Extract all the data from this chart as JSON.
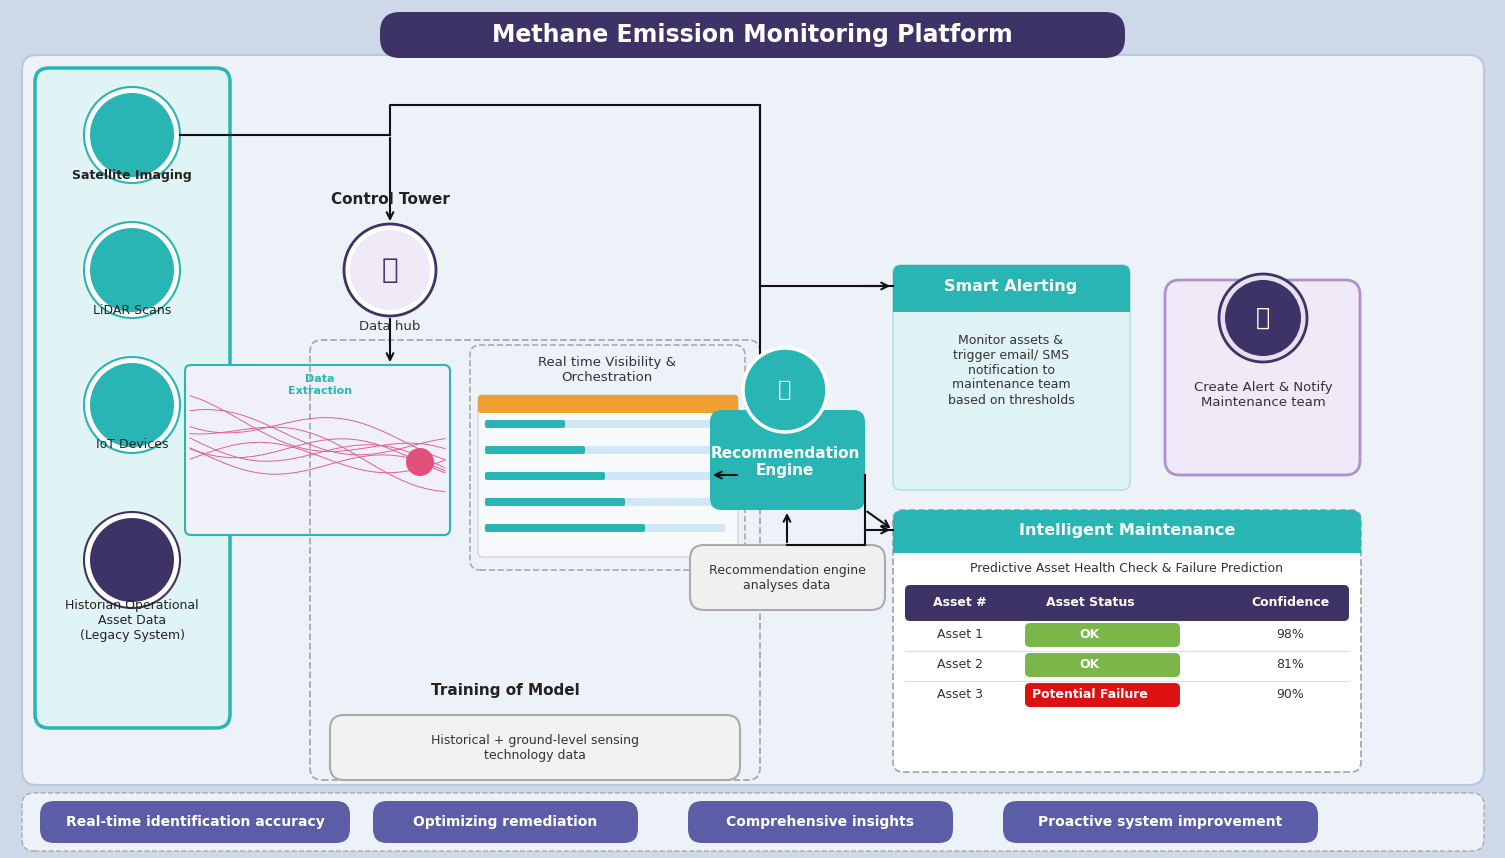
{
  "title": "Methane Emission Monitoring Platform",
  "bg_color": "#cdd8e8",
  "title_bg": "#3d3366",
  "title_text_color": "#ffffff",
  "main_panel_bg": "#edf1f8",
  "main_panel_border": "#b8c8dd",
  "left_panel_bg": "#e0f4f6",
  "left_panel_border": "#2ab5b5",
  "sources": [
    "Satellite Imaging",
    "LiDAR Scans",
    "IoT Devices",
    "Historian Operational\nAsset Data\n(Legacy System)"
  ],
  "source_icon_colors": [
    "#2ab5b5",
    "#2ab5b5",
    "#2ab5b5",
    "#3d3366"
  ],
  "control_tower_label": "Control Tower",
  "data_hub_label": "Data hub",
  "visibility_label": "Real time Visibility &\nOrchestration",
  "rec_engine_label": "Recommendation\nEngine",
  "rec_engine_color": "#2ab5b5",
  "training_label": "Training of Model",
  "historical_label": "Historical + ground-level sensing\ntechnology data",
  "rec_analysis_label": "Recommendation engine\nanalyses data",
  "smart_alerting_header": "Smart Alerting",
  "smart_alerting_body": "Monitor assets &\ntrigger email/ SMS\nnotification to\nmaintenance team\nbased on thresholds",
  "smart_alerting_color": "#2ab5b5",
  "smart_alerting_bg": "#e0f4f6",
  "notify_label": "Create Alert & Notify\nMaintenance team",
  "notify_border": "#b090d0",
  "notify_bg": "#f0eaf8",
  "intelligent_header": "Intelligent Maintenance",
  "intelligent_color": "#2ab5b5",
  "predictive_label": "Predictive Asset Health Check & Failure Prediction",
  "table_header_color": "#3d3366",
  "table_header_text": "#ffffff",
  "table_cols": [
    "Asset #",
    "Asset Status",
    "Confidence"
  ],
  "table_rows": [
    [
      "Asset 1",
      "OK",
      "98%"
    ],
    [
      "Asset 2",
      "OK",
      "81%"
    ],
    [
      "Asset 3",
      "Potential Failure",
      "90%"
    ]
  ],
  "ok_color": "#7ab648",
  "failure_color": "#dd1111",
  "ok_text_color": "#ffffff",
  "failure_text_color": "#ffffff",
  "bottom_buttons": [
    "Real-time identification accuracy",
    "Optimizing remediation",
    "Comprehensive insights",
    "Proactive system improvement"
  ],
  "bottom_button_color": "#5b5ea6",
  "bottom_button_text": "#ffffff",
  "arrow_color": "#111111",
  "dashed_color": "#aaaaaa"
}
